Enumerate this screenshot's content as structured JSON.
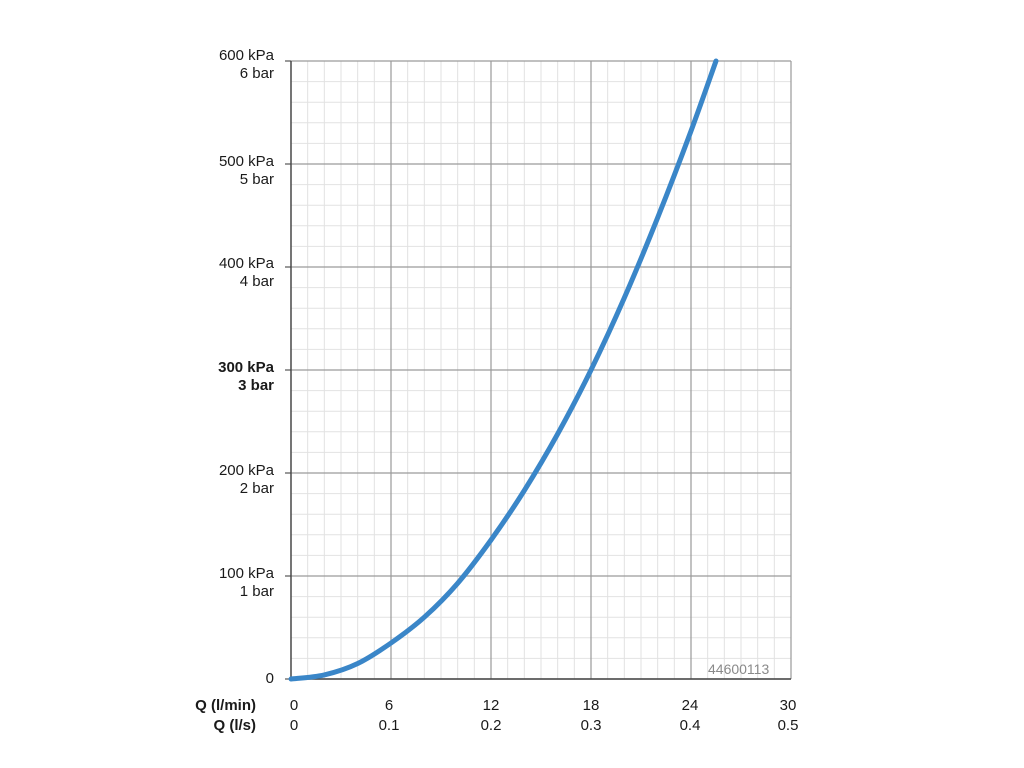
{
  "chart_data": {
    "type": "line",
    "y_axis": {
      "range_kpa": [
        0,
        600
      ],
      "grid": true,
      "ticks": [
        {
          "value": 0,
          "label_kpa": "0",
          "label_bar": "",
          "bold": false
        },
        {
          "value": 100,
          "label_kpa": "100 kPa",
          "label_bar": "1 bar",
          "bold": false
        },
        {
          "value": 200,
          "label_kpa": "200 kPa",
          "label_bar": "2 bar",
          "bold": false
        },
        {
          "value": 300,
          "label_kpa": "300 kPa",
          "label_bar": "3 bar",
          "bold": true
        },
        {
          "value": 400,
          "label_kpa": "400 kPa",
          "label_bar": "4 bar",
          "bold": false
        },
        {
          "value": 500,
          "label_kpa": "500 kPa",
          "label_bar": "5 bar",
          "bold": false
        },
        {
          "value": 600,
          "label_kpa": "600 kPa",
          "label_bar": "6 bar",
          "bold": false
        }
      ]
    },
    "x_axis": {
      "range_lmin": [
        0,
        30
      ],
      "grid": true,
      "primary_name": "Q (l/min)",
      "secondary_name": "Q (l/s)",
      "ticks": [
        {
          "value": 0,
          "label_lmin": "0",
          "label_ls": "0"
        },
        {
          "value": 6,
          "label_lmin": "6",
          "label_ls": "0.1"
        },
        {
          "value": 12,
          "label_lmin": "12",
          "label_ls": "0.2"
        },
        {
          "value": 18,
          "label_lmin": "18",
          "label_ls": "0.3"
        },
        {
          "value": 24,
          "label_lmin": "24",
          "label_ls": "0.4"
        },
        {
          "value": 30,
          "label_lmin": "30",
          "label_ls": "0.5"
        }
      ]
    },
    "series": [
      {
        "color": "#3a86c8",
        "x": [
          0,
          2,
          4,
          6,
          8,
          10,
          12,
          14,
          16,
          18,
          20,
          22,
          24,
          25.5
        ],
        "y": [
          0,
          4,
          15,
          35,
          60,
          93,
          135,
          183,
          238,
          300,
          370,
          448,
          532,
          600
        ]
      }
    ],
    "annotations": [
      {
        "text": "44600113",
        "position": "bottom-right"
      }
    ]
  }
}
